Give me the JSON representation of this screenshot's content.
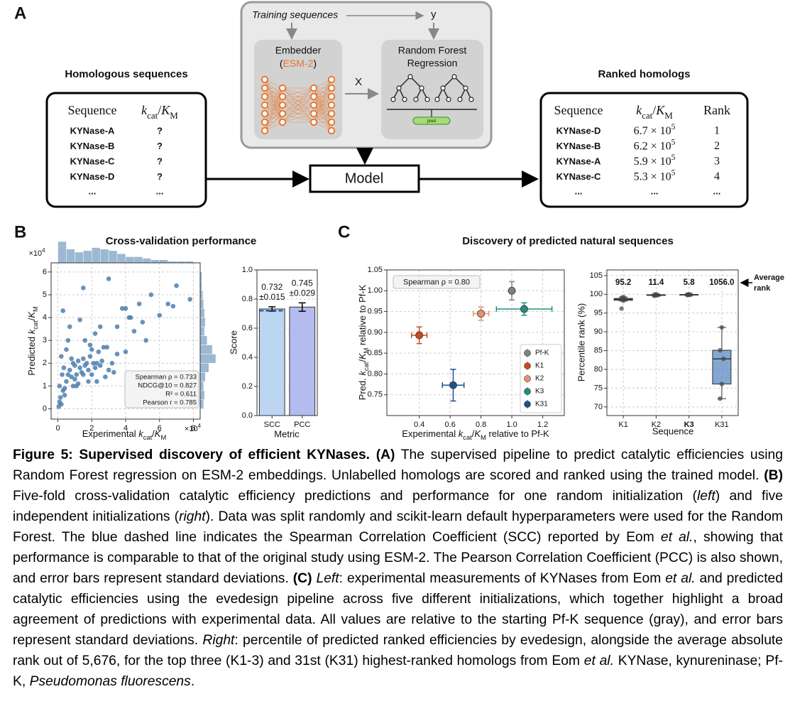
{
  "panel_a": {
    "label": "A",
    "training": "Training sequences",
    "y_label": "y",
    "x_label": "X",
    "embedder": {
      "title": "Embedder",
      "model": [
        {
          "text": "("
        },
        {
          "text": "ESM-2",
          "color": "#e8772e"
        },
        {
          "text": ")"
        }
      ]
    },
    "regressor": [
      "Random Forest",
      "Regression"
    ],
    "pred": "pred",
    "model": "Model",
    "input": {
      "title": "Homologous sequences",
      "header": {
        "sequence": "Sequence",
        "metric": [
          {
            "text": "k",
            "italic": true
          },
          {
            "text": "cat",
            "sub": true
          },
          {
            "text": "/"
          },
          {
            "text": "K",
            "italic": true
          },
          {
            "text": "M",
            "sub": true
          }
        ]
      },
      "rows": [
        {
          "name": "KYNase-A",
          "value": "?",
          "color": "#1f4fc6"
        },
        {
          "name": "KYNase-B",
          "value": "?",
          "color": "#2e8b1f"
        },
        {
          "name": "KYNase-C",
          "value": "?",
          "color": "#b8a22a"
        },
        {
          "name": "KYNase-D",
          "value": "?",
          "color": "#b02045"
        }
      ],
      "ellipsis": "..."
    },
    "output": {
      "title": "Ranked homologs",
      "header": {
        "sequence": "Sequence",
        "metric": [
          {
            "text": "k",
            "italic": true
          },
          {
            "text": "cat",
            "sub": true
          },
          {
            "text": "/"
          },
          {
            "text": "K",
            "italic": true
          },
          {
            "text": "M",
            "sub": true
          }
        ],
        "rank": "Rank"
      },
      "rows": [
        {
          "name": "KYNase-D",
          "value": [
            {
              "text": "6.7 × 10"
            },
            {
              "text": "5",
              "sup": true
            }
          ],
          "rank": 1,
          "color": "#b02045"
        },
        {
          "name": "KYNase-B",
          "value": [
            {
              "text": "6.2 × 10"
            },
            {
              "text": "5",
              "sup": true
            }
          ],
          "rank": 2,
          "color": "#2e8b1f"
        },
        {
          "name": "KYNase-A",
          "value": [
            {
              "text": "5.9 × 10"
            },
            {
              "text": "5",
              "sup": true
            }
          ],
          "rank": 3,
          "color": "#1f4fc6"
        },
        {
          "name": "KYNase-C",
          "value": [
            {
              "text": "5.3 × 10"
            },
            {
              "text": "5",
              "sup": true
            }
          ],
          "rank": 4,
          "color": "#b8a22a"
        }
      ],
      "ellipsis": "..."
    }
  },
  "panels": {
    "b": {
      "label": "B",
      "title": "Cross-validation performance"
    },
    "c": {
      "label": "C",
      "title": "Discovery of predicted natural sequences"
    }
  },
  "chart_data": [
    {
      "type": "scatter",
      "color": "#4d7fae",
      "x_label": [
        {
          "text": "Experimental "
        },
        {
          "text": "k",
          "italic": true
        },
        {
          "text": "cat",
          "sub": true
        },
        {
          "text": "/"
        },
        {
          "text": "K",
          "italic": true
        },
        {
          "text": "M",
          "sub": true
        }
      ],
      "y_label": [
        {
          "text": "Predicted "
        },
        {
          "text": "k",
          "italic": true
        },
        {
          "text": "cat",
          "sub": true
        },
        {
          "text": "/"
        },
        {
          "text": "K",
          "italic": true
        },
        {
          "text": "M",
          "sub": true
        }
      ],
      "x_multiplier": [
        {
          "text": "×10"
        },
        {
          "text": "4",
          "sup": true
        }
      ],
      "y_multiplier": [
        {
          "text": "×10"
        },
        {
          "text": "4",
          "sup": true
        }
      ],
      "x": [
        0.05,
        0.1,
        0.15,
        0.2,
        0.1,
        0.3,
        0.25,
        0.4,
        0.5,
        0.2,
        0.35,
        0.6,
        0.7,
        0.8,
        0.9,
        1.0,
        0.5,
        0.6,
        1.1,
        1.2,
        1.3,
        1.4,
        1.5,
        1.6,
        1.7,
        1.8,
        1.9,
        2.0,
        2.1,
        2.2,
        2.3,
        2.4,
        2.5,
        2.6,
        2.8,
        3.0,
        1.0,
        1.2,
        1.5,
        1.8,
        2.0,
        2.2,
        0.8,
        0.9,
        1.3,
        1.6,
        2.7,
        3.2,
        3.5,
        3.8,
        4.0,
        4.2,
        4.5,
        4.8,
        5.0,
        5.5,
        6.0,
        6.5,
        7.0,
        7.8,
        1.5,
        2.5,
        3.0,
        3.5,
        4.0,
        0.4,
        0.3,
        1.9,
        2.3,
        3.3,
        4.3,
        5.2,
        1.1,
        0.7,
        6.8,
        2.9
      ],
      "y": [
        0.1,
        0.3,
        0.5,
        0.2,
        1.0,
        0.8,
        1.5,
        0.6,
        1.2,
        2.3,
        1.8,
        1.5,
        1.7,
        1.4,
        2.0,
        1.9,
        2.6,
        3.0,
        1.5,
        2.1,
        1.8,
        1.6,
        2.2,
        1.9,
        2.0,
        1.7,
        2.3,
        1.5,
        2.0,
        1.8,
        1.2,
        2.5,
        1.9,
        2.1,
        1.4,
        1.7,
        1.3,
        1.1,
        1.5,
        1.2,
        2.6,
        3.3,
        2.2,
        1.0,
        3.9,
        3.0,
        2.7,
        2.0,
        3.6,
        4.4,
        2.5,
        4.0,
        3.4,
        4.6,
        3.8,
        5.0,
        4.1,
        4.6,
        5.4,
        4.8,
        5.3,
        3.6,
        5.7,
        2.4,
        4.4,
        0.9,
        4.3,
        2.8,
        2.0,
        1.6,
        4.0,
        3.0,
        1.0,
        3.6,
        4.5,
        2.7
      ],
      "xlim": [
        -0.4,
        8.4
      ],
      "ylim": [
        -0.45,
        6.4
      ],
      "xticks": [
        0,
        2,
        4,
        6,
        8
      ],
      "yticks": [
        0,
        1,
        2,
        3,
        4,
        5,
        6
      ],
      "grid": true,
      "annotation": [
        "Spearman ρ = 0.733",
        "NDCG@10 = 0.827",
        "R² = 0.611",
        "Pearson r = 0.785"
      ],
      "x_hist": {
        "bins": [
          0,
          0.5,
          1,
          1.5,
          2,
          2.5,
          3,
          3.5,
          4,
          4.5,
          5,
          5.5,
          6,
          6.5,
          7,
          7.5,
          8
        ],
        "counts": [
          14,
          9,
          7,
          8,
          10,
          9,
          8,
          6,
          4,
          4,
          3,
          2,
          2,
          1,
          1,
          1
        ]
      },
      "y_hist": {
        "bins": [
          0,
          0.4,
          0.8,
          1.2,
          1.6,
          2,
          2.4,
          2.8,
          3.2,
          3.6,
          4,
          4.4,
          4.8,
          5.2,
          5.6,
          6
        ],
        "counts": [
          4,
          5,
          4,
          6,
          10,
          18,
          14,
          8,
          5,
          6,
          5,
          4,
          3,
          2,
          2
        ]
      }
    },
    {
      "type": "bar",
      "categories": [
        "SCC",
        "PCC"
      ],
      "values": [
        0.732,
        0.745
      ],
      "errors": [
        0.015,
        0.029
      ],
      "error_labels": [
        "±0.015",
        "±0.029"
      ],
      "colors": [
        "#bcd6f2",
        "#b3bbef"
      ],
      "reference": 0.72,
      "reference_color": "#1f3f9e",
      "ylim": [
        0,
        1
      ],
      "yticks": [
        {
          "value": 0,
          "label": "0.0"
        },
        0.2,
        0.4,
        0.6,
        0.8,
        {
          "value": 1,
          "label": "1.0"
        }
      ],
      "x_label": "Metric",
      "y_label": "Score",
      "grid": true
    },
    {
      "type": "errorbar",
      "series": [
        {
          "name": "Pf-K",
          "color": "#808080",
          "x": [
            1.0
          ],
          "y": [
            1.0
          ],
          "xerr": [
            0
          ],
          "yerr": [
            0.022
          ]
        },
        {
          "name": "K1",
          "color": "#cc4a1a",
          "x": [
            0.4
          ],
          "y": [
            0.893
          ],
          "xerr": [
            0.05
          ],
          "yerr": [
            0.02
          ]
        },
        {
          "name": "K2",
          "color": "#e8926a",
          "x": [
            0.8
          ],
          "y": [
            0.945
          ],
          "xerr": [
            0.05
          ],
          "yerr": [
            0.016
          ]
        },
        {
          "name": "K3",
          "color": "#1f8f80",
          "x": [
            1.08
          ],
          "y": [
            0.956
          ],
          "xerr": [
            0.18
          ],
          "yerr": [
            0.015
          ]
        },
        {
          "name": "K31",
          "color": "#1f4f8f",
          "x": [
            0.62
          ],
          "y": [
            0.773
          ],
          "xerr": [
            0.07
          ],
          "yerr": [
            0.038
          ]
        }
      ],
      "xlim": [
        0.19,
        1.34
      ],
      "ylim": [
        0.7,
        1.05
      ],
      "xticks": [
        0.4,
        0.6,
        0.8,
        {
          "value": 1,
          "label": "1.0"
        },
        1.2
      ],
      "yticks": [
        0.75,
        {
          "value": 0.8,
          "label": "0.80"
        },
        0.85,
        {
          "value": 0.9,
          "label": "0.90"
        },
        0.95,
        {
          "value": 1,
          "label": "1.00"
        },
        1.05
      ],
      "x_label": [
        {
          "text": "Experimental "
        },
        {
          "text": "k",
          "italic": true
        },
        {
          "text": "cat",
          "sub": true
        },
        {
          "text": "/"
        },
        {
          "text": "K",
          "italic": true
        },
        {
          "text": "M",
          "sub": true
        },
        {
          "text": " relative to Pf-K"
        }
      ],
      "y_label": [
        {
          "text": "Pred. "
        },
        {
          "text": "k",
          "italic": true
        },
        {
          "text": "cat",
          "sub": true
        },
        {
          "text": "/"
        },
        {
          "text": "K",
          "italic": true
        },
        {
          "text": "M",
          "sub": true
        },
        {
          "text": " relative to Pf-K"
        }
      ],
      "annotation": "Spearman ρ = 0.80",
      "legend": "lower right",
      "grid": true
    },
    {
      "type": "box",
      "categories": [
        "K1",
        "K2",
        "K3",
        "K31"
      ],
      "category_colors": [
        "#000000",
        "#000000",
        "#2a8a2a",
        "#000000"
      ],
      "color": "#4f81bd",
      "boxes": [
        {
          "whislo": 98.2,
          "q1": 98.4,
          "med": 98.7,
          "q3": 98.9,
          "whishi": 99.3,
          "points": [
            96.2,
            98.3,
            98.8,
            99.0,
            99.3
          ]
        },
        {
          "whislo": 99.5,
          "q1": 99.7,
          "med": 99.8,
          "q3": 99.9,
          "whishi": 100,
          "points": [
            99.6,
            99.7,
            99.8,
            99.9,
            100
          ]
        },
        {
          "whislo": 99.7,
          "q1": 99.8,
          "med": 99.9,
          "q3": 99.95,
          "whishi": 100,
          "points": [
            99.8,
            99.85,
            99.9,
            99.95,
            100
          ]
        },
        {
          "whislo": 72.2,
          "q1": 76.1,
          "med": 82.8,
          "q3": 85.1,
          "whishi": 91.2,
          "points": [
            72.2,
            76.1,
            82.8,
            85.1,
            91.2
          ]
        }
      ],
      "avg_rank": [
        95.2,
        11.4,
        5.8,
        1056
      ],
      "avg_rank_labels": [
        "95.2",
        "11.4",
        "5.8",
        "1056.0"
      ],
      "avg_rank_title": [
        "Average",
        "rank"
      ],
      "ylim": [
        67.7,
        106.5
      ],
      "yticks": [
        70,
        75,
        80,
        85,
        90,
        95,
        100,
        105
      ],
      "x_label": "Sequence",
      "y_label": "Percentile rank (%)",
      "grid": true
    }
  ],
  "caption": {
    "segments": [
      {
        "text": "Figure 5: Supervised discovery of efficient KYNases. (A)",
        "style": "b"
      },
      {
        "text": " The supervised pipeline to predict catalytic efficiencies using Random Forest regression on ESM-2 embeddings. Unlabelled homologs are scored and ranked using the trained model. "
      },
      {
        "text": "(B)",
        "style": "b"
      },
      {
        "text": " Five-fold cross-validation catalytic efficiency predictions and performance for one random initialization ("
      },
      {
        "text": "left",
        "style": "i"
      },
      {
        "text": ") and five independent initializations ("
      },
      {
        "text": "right",
        "style": "i"
      },
      {
        "text": "). Data was split randomly and scikit-learn default hyperparameters were used for the Random Forest. The blue dashed line indicates the Spearman Correlation Coefficient (SCC) reported by Eom "
      },
      {
        "text": "et al.",
        "style": "i"
      },
      {
        "text": ", showing that performance is comparable to that of the original study using ESM-2. The Pearson Correlation Coefficient (PCC) is also shown, and error bars represent standard deviations. "
      },
      {
        "text": "(C) ",
        "style": "b"
      },
      {
        "text": "Left",
        "style": "i"
      },
      {
        "text": ": experimental measurements of KYNases from Eom "
      },
      {
        "text": "et al.",
        "style": "i"
      },
      {
        "text": " and predicted catalytic efficiencies using the evedesign pipeline across five different initializations, which together highlight a broad agreement of predictions with experimental data. All values are relative to the starting Pf-K sequence (gray), and error bars represent standard deviations. "
      },
      {
        "text": "Right",
        "style": "i"
      },
      {
        "text": ": percentile of predicted ranked efficiencies by evedesign, alongside the average absolute rank out of 5,676, for the top three (K1-3) and 31st (K31) highest-ranked homologs from Eom "
      },
      {
        "text": "et al.",
        "style": "i"
      },
      {
        "text": " KYNase, kynureninase; Pf-K, "
      },
      {
        "text": "Pseudomonas fluorescens",
        "style": "i"
      },
      {
        "text": "."
      }
    ]
  }
}
